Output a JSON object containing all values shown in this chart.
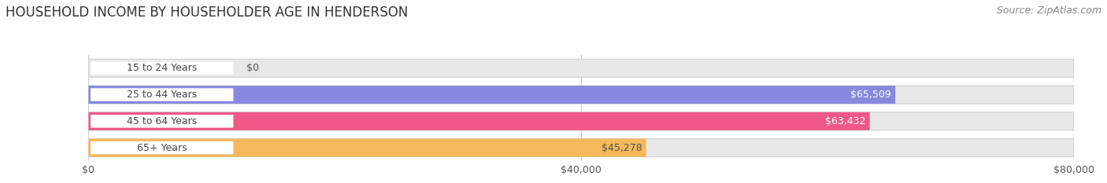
{
  "title": "HOUSEHOLD INCOME BY HOUSEHOLDER AGE IN HENDERSON",
  "source": "Source: ZipAtlas.com",
  "categories": [
    "15 to 24 Years",
    "25 to 44 Years",
    "45 to 64 Years",
    "65+ Years"
  ],
  "values": [
    0,
    65509,
    63432,
    45278
  ],
  "bar_colors": [
    "#6dd4cc",
    "#8888dd",
    "#f05888",
    "#f5b85a"
  ],
  "value_labels": [
    "$0",
    "$65,509",
    "$63,432",
    "$45,278"
  ],
  "value_label_colors": [
    "#555555",
    "#ffffff",
    "#ffffff",
    "#555555"
  ],
  "x_ticks": [
    0,
    40000,
    80000
  ],
  "x_tick_labels": [
    "$0",
    "$40,000",
    "$80,000"
  ],
  "xlim_max": 80000,
  "bg_color": "#ffffff",
  "bar_bg_color": "#e8e8e8",
  "bar_height": 0.68,
  "bar_gap": 0.32,
  "title_fontsize": 12,
  "source_fontsize": 9,
  "label_fontsize": 9,
  "value_fontsize": 9,
  "tick_fontsize": 9,
  "grid_color": "#cccccc",
  "label_pill_color": "#ffffff",
  "label_text_color": "#444444"
}
